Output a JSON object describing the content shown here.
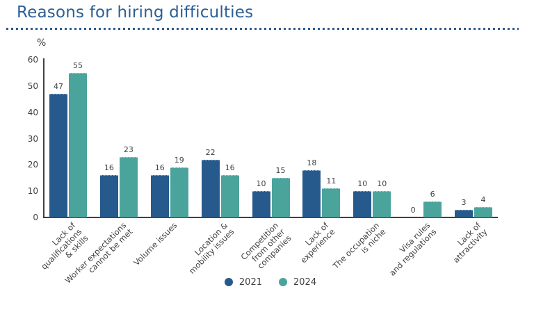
{
  "page": {
    "title": "Reasons for hiring difficulties"
  },
  "chart_data": {
    "type": "bar",
    "title": "Reasons for hiring difficulties",
    "unit_label": "%",
    "xlabel": "",
    "ylabel": "%",
    "ylim": [
      0,
      60
    ],
    "yticks": [
      0,
      10,
      20,
      30,
      40,
      50,
      60
    ],
    "grid": false,
    "value_labels": true,
    "legend_position": "bottom",
    "categories": [
      [
        "Lack of",
        "qualifications",
        "& skills"
      ],
      [
        "Worker expectations",
        "cannot be met"
      ],
      [
        "Volume issues"
      ],
      [
        "Location &",
        "mobility issues"
      ],
      [
        "Competition",
        "from other",
        "companies"
      ],
      [
        "Lack of",
        "experience"
      ],
      [
        "The occupation",
        "is niche"
      ],
      [
        "Visa rules",
        "and regulations"
      ],
      [
        "Lack of",
        "attractivity"
      ]
    ],
    "series": [
      {
        "name": "2021",
        "color": "#265a8d",
        "values": [
          47,
          16,
          16,
          22,
          10,
          18,
          10,
          0,
          3
        ]
      },
      {
        "name": "2024",
        "color": "#4ba49b",
        "values": [
          55,
          23,
          19,
          16,
          15,
          11,
          10,
          6,
          4
        ]
      }
    ]
  },
  "colors": {
    "title": "#2c5f94",
    "dotted_rule": "#2a5a8e",
    "axis": "#404040",
    "text": "#404040",
    "series_2021": "#265a8d",
    "series_2024": "#4ba49b"
  }
}
